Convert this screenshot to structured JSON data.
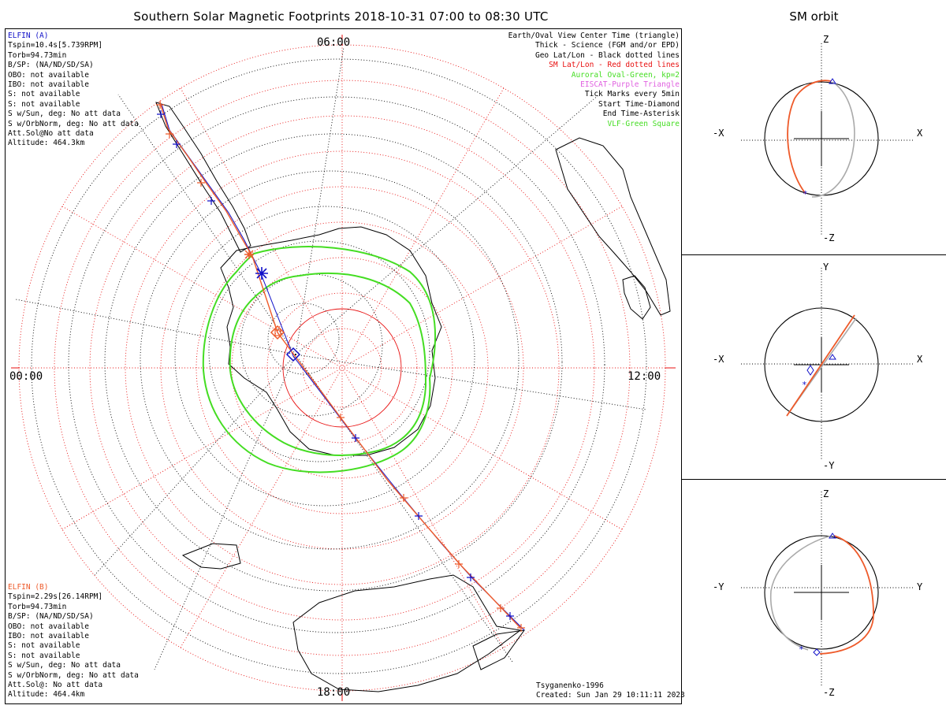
{
  "title": "Southern Solar Magnetic Footprints 2018-10-31 07:00 to 08:30 UTC",
  "sm_title": "SM orbit",
  "clock_labels": {
    "top": "06:00",
    "left": "00:00",
    "right": "12:00",
    "bottom": "18:00"
  },
  "elfin_a": {
    "name": "ELFIN (A)",
    "lines": [
      "Tspin=10.4s[5.739RPM]",
      "Torb=94.73min",
      "B/SP: (NA/ND/SD/SA)",
      "OBO: not available",
      "IBO: not available",
      "S: not available",
      "S: not available",
      "S w/Sun, deg: No att data",
      "S w/OrbNorm, deg: No att data",
      "Att.Sol@No att data",
      "Altitude: 464.3km"
    ]
  },
  "elfin_b": {
    "name": "ELFIN (B)",
    "lines": [
      "Tspin=2.29s[26.14RPM]",
      "Torb=94.73min",
      "B/SP: (NA/ND/SD/SA)",
      "OBO: not available",
      "IBO: not available",
      "S: not available",
      "S: not available",
      "S w/Sun, deg: No att data",
      "S w/OrbNorm, deg: No att data",
      "Att.Sol@: No att data",
      "Altitude: 464.4km"
    ]
  },
  "legend": [
    {
      "text": "Earth/Oval View Center Time (triangle)",
      "color": "#000000"
    },
    {
      "text": "Thick - Science (FGM and/or EPD)",
      "color": "#000000"
    },
    {
      "text": "Geo Lat/Lon - Black dotted lines",
      "color": "#000000"
    },
    {
      "text": "SM Lat/Lon - Red dotted lines",
      "color": "#e81010"
    },
    {
      "text": "Auroral Oval-Green, kp=2",
      "color": "#44dd22"
    },
    {
      "text": "EISCAT-Purple Triangle",
      "color": "#e060e0"
    },
    {
      "text": "Tick Marks every 5min",
      "color": "#000000"
    },
    {
      "text": "Start Time-Diamond",
      "color": "#000000"
    },
    {
      "text": "End Time-Asterisk",
      "color": "#000000"
    },
    {
      "text": "VLF-Green Square",
      "color": "#44dd22"
    }
  ],
  "credit": {
    "model": "Tsyganenko-1996",
    "created": "Created: Sun Jan 29 10:11:11 2023"
  },
  "panels": [
    {
      "h_neg": "-X",
      "h_pos": "X",
      "v_pos": "Z",
      "v_neg": "-Z"
    },
    {
      "h_neg": "-X",
      "h_pos": "X",
      "v_pos": "Y",
      "v_neg": "-Y"
    },
    {
      "h_neg": "-Y",
      "h_pos": "Y",
      "v_pos": "Z",
      "v_neg": "-Z"
    }
  ],
  "colors": {
    "elfin_a": "#1010c8",
    "elfin_b": "#ee5a2a",
    "oval": "#44dd22",
    "sm_grid": "#e81010",
    "geo_grid": "#000000"
  }
}
